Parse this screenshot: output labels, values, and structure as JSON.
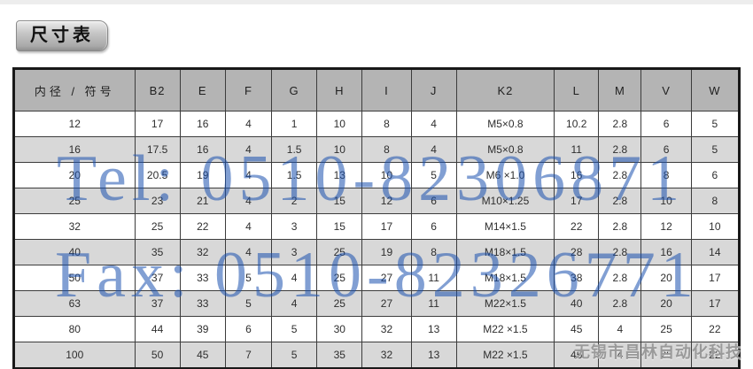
{
  "page": {
    "title_badge": "尺寸表",
    "company": "无锡市昌林自动化科技"
  },
  "watermark": {
    "tel": "Tel: 0510-82306871",
    "fax": "Fax: 0510-82326771",
    "color": "#1950af"
  },
  "table": {
    "headers": [
      "内径 / 符号",
      "B2",
      "E",
      "F",
      "G",
      "H",
      "I",
      "J",
      "K2",
      "L",
      "M",
      "V",
      "W"
    ],
    "rows": [
      [
        "12",
        "17",
        "16",
        "4",
        "1",
        "10",
        "8",
        "4",
        "M5×0.8",
        "10.2",
        "2.8",
        "6",
        "5"
      ],
      [
        "16",
        "17.5",
        "16",
        "4",
        "1.5",
        "10",
        "8",
        "4",
        "M5×0.8",
        "11",
        "2.8",
        "6",
        "5"
      ],
      [
        "20",
        "20.5",
        "19",
        "4",
        "1.5",
        "13",
        "10",
        "5",
        "M6 ×1.0",
        "16",
        "2.8",
        "8",
        "6"
      ],
      [
        "25",
        "23",
        "21",
        "4",
        "2",
        "15",
        "12",
        "6",
        "M10×1.25",
        "17",
        "2.8",
        "10",
        "8"
      ],
      [
        "32",
        "25",
        "22",
        "4",
        "3",
        "15",
        "17",
        "6",
        "M14×1.5",
        "22",
        "2.8",
        "12",
        "10"
      ],
      [
        "40",
        "35",
        "32",
        "4",
        "3",
        "25",
        "19",
        "8",
        "M18×1.5",
        "28",
        "2.8",
        "16",
        "14"
      ],
      [
        "50",
        "37",
        "33",
        "5",
        "4",
        "25",
        "27",
        "11",
        "M18×1.5",
        "38",
        "2.8",
        "20",
        "17"
      ],
      [
        "63",
        "37",
        "33",
        "5",
        "4",
        "25",
        "27",
        "11",
        "M22×1.5",
        "40",
        "2.8",
        "20",
        "17"
      ],
      [
        "80",
        "44",
        "39",
        "6",
        "5",
        "30",
        "32",
        "13",
        "M22 ×1.5",
        "45",
        "4",
        "25",
        "22"
      ],
      [
        "100",
        "50",
        "45",
        "7",
        "5",
        "35",
        "32",
        "13",
        "M22 ×1.5",
        "45",
        "4",
        "25",
        "22"
      ]
    ],
    "colors": {
      "header_bg": "#b4b4b4",
      "row_bg": "#ffffff",
      "row_alt_bg": "#d8d8d8"
    }
  }
}
